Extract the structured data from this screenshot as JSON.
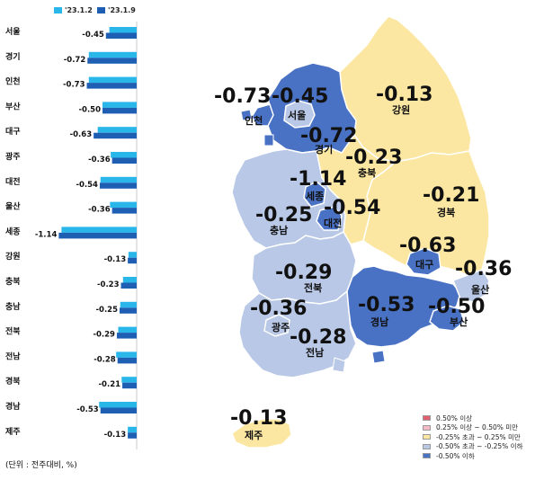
{
  "legend_series": [
    {
      "label": "'23.1.2",
      "color": "#29b6e8"
    },
    {
      "label": "'23.1.9",
      "color": "#1f5fb3"
    }
  ],
  "unit_note": "(단위 : 전주대비, %)",
  "chart_data": {
    "type": "bar",
    "orientation": "horizontal",
    "categories": [
      "서울",
      "경기",
      "인천",
      "부산",
      "대구",
      "광주",
      "대전",
      "울산",
      "세종",
      "강원",
      "충북",
      "충남",
      "전북",
      "전남",
      "경북",
      "경남",
      "제주"
    ],
    "series": [
      {
        "name": "'23.1.2",
        "values": [
          -0.4,
          -0.7,
          -0.7,
          -0.5,
          -0.57,
          -0.38,
          -0.53,
          -0.39,
          -1.1,
          -0.12,
          -0.2,
          -0.24,
          -0.27,
          -0.3,
          -0.22,
          -0.55,
          -0.13
        ]
      },
      {
        "name": "'23.1.9",
        "values": [
          -0.45,
          -0.72,
          -0.73,
          -0.5,
          -0.63,
          -0.36,
          -0.54,
          -0.36,
          -1.14,
          -0.13,
          -0.23,
          -0.25,
          -0.29,
          -0.28,
          -0.21,
          -0.53,
          -0.13
        ]
      }
    ],
    "value_labels": [
      "-0.45",
      "-0.72",
      "-0.73",
      "-0.50",
      "-0.63",
      "-0.36",
      "-0.54",
      "-0.36",
      "-1.14",
      "-0.13",
      "-0.23",
      "-0.25",
      "-0.29",
      "-0.28",
      "-0.21",
      "-0.53",
      "-0.13"
    ]
  },
  "map": {
    "regions": [
      {
        "name": "강원",
        "value": "-0.13"
      },
      {
        "name": "경기",
        "value": "-0.72"
      },
      {
        "name": "서울",
        "value": "-0.45"
      },
      {
        "name": "인천",
        "value": "-0.73"
      },
      {
        "name": "충북",
        "value": "-0.23"
      },
      {
        "name": "세종",
        "value": "-1.14"
      },
      {
        "name": "대전",
        "value": "-0.54"
      },
      {
        "name": "충남",
        "value": "-0.25"
      },
      {
        "name": "경북",
        "value": "-0.21"
      },
      {
        "name": "대구",
        "value": "-0.63"
      },
      {
        "name": "울산",
        "value": "-0.36"
      },
      {
        "name": "전북",
        "value": "-0.29"
      },
      {
        "name": "경남",
        "value": "-0.53"
      },
      {
        "name": "부산",
        "value": "-0.50"
      },
      {
        "name": "광주",
        "value": "-0.36"
      },
      {
        "name": "전남",
        "value": "-0.28"
      },
      {
        "name": "제주",
        "value": "-0.13"
      }
    ],
    "colors": {
      "dark_blue": "#4a72c4",
      "light_blue": "#b8c8e6",
      "yellow": "#fbe7a1",
      "pink": "#f3b9c6",
      "red": "#e06070"
    }
  },
  "legend": [
    {
      "label": "0.50% 이상",
      "color": "#e06070"
    },
    {
      "label": "0.25% 이상 ~ 0.50% 미만",
      "color": "#f3b9c6"
    },
    {
      "label": "-0.25% 초과 ~ 0.25% 미만",
      "color": "#fbe7a1"
    },
    {
      "label": "-0.50% 초과 ~ -0.25% 이하",
      "color": "#b8c8e6"
    },
    {
      "label": "-0.50% 이하",
      "color": "#4a72c4"
    }
  ]
}
